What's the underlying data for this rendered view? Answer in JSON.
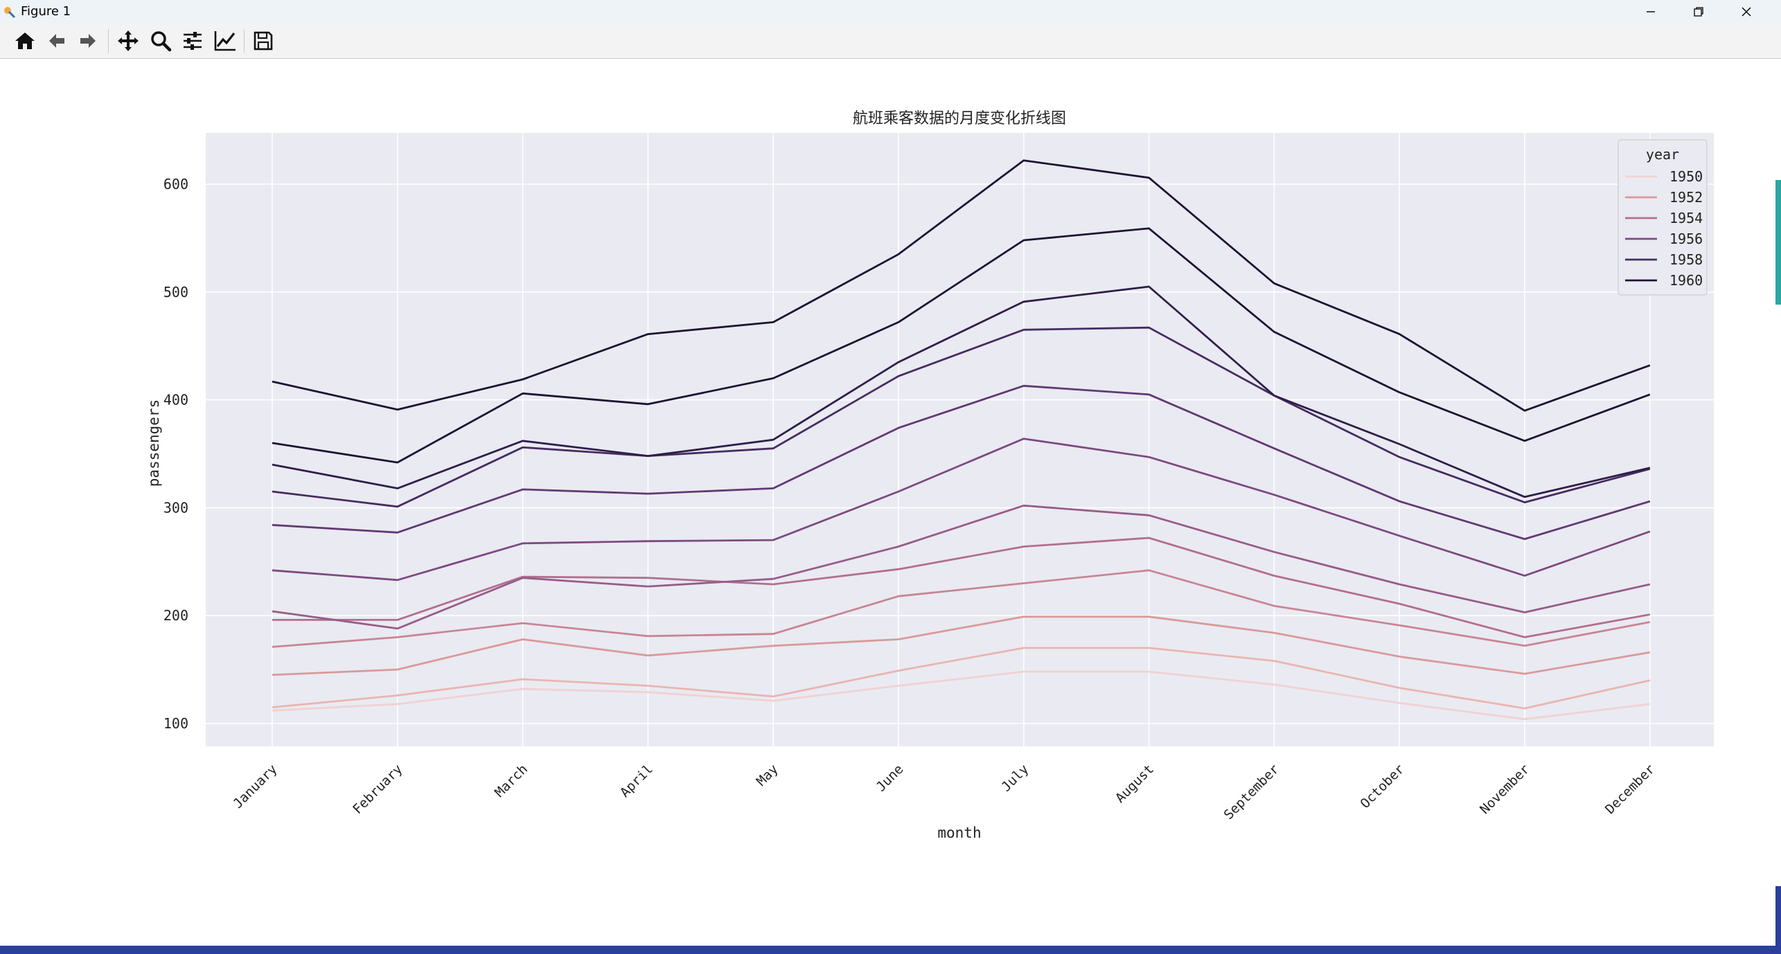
{
  "window": {
    "title": "Figure 1"
  },
  "toolbar": {
    "buttons": [
      {
        "name": "home-icon"
      },
      {
        "name": "back-icon"
      },
      {
        "name": "forward-icon"
      },
      {
        "name": "pan-icon"
      },
      {
        "name": "zoom-icon"
      },
      {
        "name": "subplots-icon"
      },
      {
        "name": "edit-axes-icon"
      },
      {
        "name": "save-icon"
      }
    ]
  },
  "colors": {
    "plot_background": "#eaeaf2",
    "grid": "#ffffff",
    "series": [
      "#f0d2d2",
      "#e8b6b0",
      "#d99a9b",
      "#c88594",
      "#b16f8e",
      "#975c89",
      "#7c4a80",
      "#603a73",
      "#462c61",
      "#2f1e49",
      "#1e1232"
    ]
  },
  "chart_data": {
    "type": "line",
    "title": "航班乘客数据的月度变化折线图",
    "xlabel": "month",
    "ylabel": "passengers",
    "ylim": [
      80,
      650
    ],
    "yticks": [
      100,
      200,
      300,
      400,
      500,
      600
    ],
    "grid": true,
    "legend": {
      "title": "year",
      "placement": "top-right",
      "entries": [
        "1950",
        "1952",
        "1954",
        "1956",
        "1958",
        "1960"
      ]
    },
    "categories": [
      "January",
      "February",
      "March",
      "April",
      "May",
      "June",
      "July",
      "August",
      "September",
      "October",
      "November",
      "December"
    ],
    "series": [
      {
        "values": [
          112,
          118,
          132,
          129,
          121,
          135,
          148,
          148,
          136,
          119,
          104,
          118
        ]
      },
      {
        "values": [
          115,
          126,
          141,
          135,
          125,
          149,
          170,
          170,
          158,
          133,
          114,
          140
        ]
      },
      {
        "values": [
          145,
          150,
          178,
          163,
          172,
          178,
          199,
          199,
          184,
          162,
          146,
          166
        ]
      },
      {
        "values": [
          171,
          180,
          193,
          181,
          183,
          218,
          230,
          242,
          209,
          191,
          172,
          194
        ]
      },
      {
        "values": [
          196,
          196,
          236,
          235,
          229,
          243,
          264,
          272,
          237,
          211,
          180,
          201
        ]
      },
      {
        "values": [
          204,
          188,
          235,
          227,
          234,
          264,
          302,
          293,
          259,
          229,
          203,
          229
        ]
      },
      {
        "values": [
          242,
          233,
          267,
          269,
          270,
          315,
          364,
          347,
          312,
          274,
          237,
          278
        ]
      },
      {
        "values": [
          284,
          277,
          317,
          313,
          318,
          374,
          413,
          405,
          355,
          306,
          271,
          306
        ]
      },
      {
        "values": [
          315,
          301,
          356,
          348,
          355,
          422,
          465,
          467,
          404,
          347,
          305,
          336
        ]
      },
      {
        "values": [
          340,
          318,
          362,
          348,
          363,
          435,
          491,
          505,
          404,
          359,
          310,
          337
        ]
      },
      {
        "values": [
          360,
          342,
          406,
          396,
          420,
          472,
          548,
          559,
          463,
          407,
          362,
          405
        ]
      },
      {
        "values": [
          417,
          391,
          419,
          461,
          472,
          535,
          622,
          606,
          508,
          461,
          390,
          432
        ]
      }
    ]
  }
}
